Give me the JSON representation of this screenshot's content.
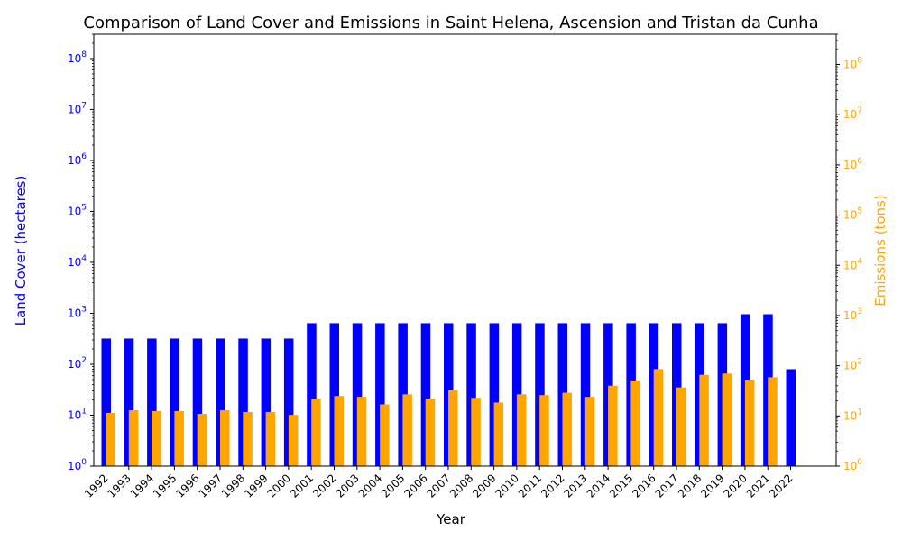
{
  "chart_data": {
    "type": "bar",
    "title": "Comparison of Land Cover and Emissions in Saint Helena, Ascension and Tristan da Cunha",
    "xlabel": "Year",
    "ylabel_left": "Land Cover (hectares)",
    "ylabel_right": "Emissions (tons)",
    "yscale": "log",
    "ylim_left": [
      1,
      300000000
    ],
    "ylim_right": [
      1,
      400000000
    ],
    "grid": false,
    "categories": [
      "1992",
      "1993",
      "1994",
      "1995",
      "1996",
      "1997",
      "1998",
      "1999",
      "2000",
      "2001",
      "2002",
      "2003",
      "2004",
      "2005",
      "2006",
      "2007",
      "2008",
      "2009",
      "2010",
      "2011",
      "2012",
      "2013",
      "2014",
      "2015",
      "2016",
      "2017",
      "2018",
      "2019",
      "2020",
      "2021",
      "2022"
    ],
    "series": [
      {
        "axis": "left",
        "color": "#0000ff",
        "values": [
          320,
          320,
          320,
          320,
          320,
          320,
          320,
          320,
          320,
          640,
          640,
          640,
          640,
          640,
          640,
          640,
          640,
          640,
          640,
          640,
          640,
          640,
          640,
          640,
          640,
          640,
          640,
          640,
          960,
          960,
          80
        ]
      },
      {
        "axis": "right",
        "color": "#ffa500",
        "values": [
          11.5,
          13,
          12.5,
          12.5,
          11,
          13,
          12,
          12,
          10.5,
          22,
          25,
          24,
          17,
          27,
          22,
          33,
          23,
          18.5,
          27,
          26,
          29,
          24,
          40,
          51,
          86,
          37,
          66,
          70,
          53,
          59,
          null
        ]
      }
    ],
    "y_ticks_left": [
      "10^0",
      "10^1",
      "10^2",
      "10^3",
      "10^4",
      "10^5",
      "10^6",
      "10^7",
      "10^8"
    ],
    "y_ticks_right": [
      "10^0",
      "10^1",
      "10^2",
      "10^3",
      "10^4",
      "10^5",
      "10^6",
      "10^7",
      "10^8"
    ],
    "colors": {
      "left_axis": "#0000ff",
      "right_axis": "#ffa500"
    }
  }
}
